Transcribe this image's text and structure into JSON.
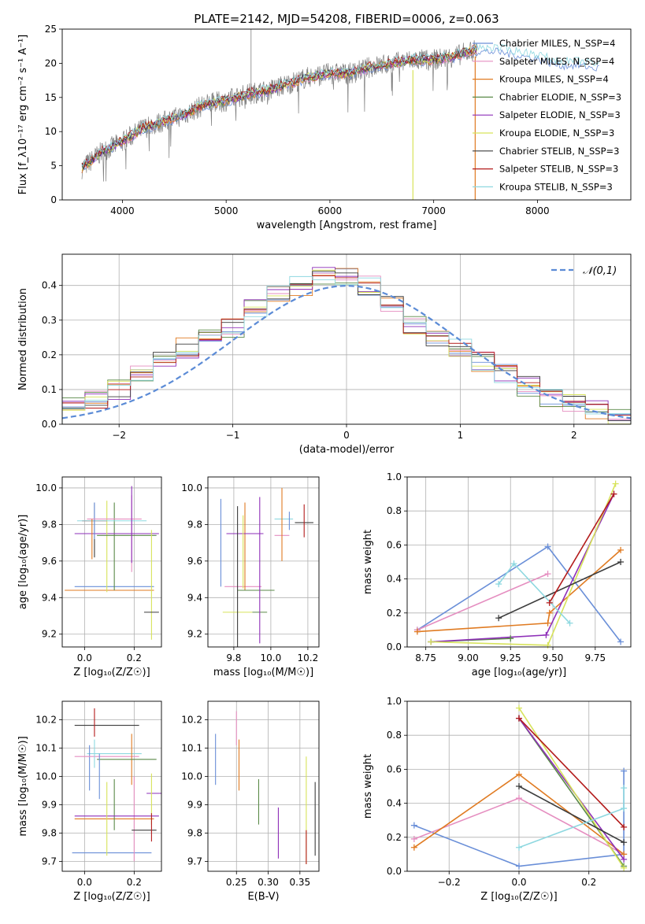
{
  "palette": [
    "#6a8fd8",
    "#e58ec0",
    "#e07b22",
    "#5a8a48",
    "#8e2fb8",
    "#d7e35a",
    "#3c3c3c",
    "#b31b1b",
    "#8ed8e0"
  ],
  "chart_data": [
    {
      "id": "spectrum",
      "type": "line",
      "title": "PLATE=2142, MJD=54208, FIBERID=0006, z=0.063",
      "xlabel": "wavelength [Angstrom, rest frame]",
      "ylabel": "Flux [f_λ10⁻¹⁷ erg cm⁻² s⁻¹ A⁻¹]",
      "xlim": [
        3420,
        8900
      ],
      "ylim": [
        0,
        25
      ],
      "xticks": [
        4000,
        5000,
        6000,
        7000,
        8000
      ],
      "yticks": [
        0,
        5,
        10,
        15,
        20,
        25
      ],
      "legend_position": "top-right",
      "legend": [
        "Chabrier MILES, N_SSP=4",
        "Salpeter MILES, N_SSP=4",
        "Kroupa MILES, N_SSP=4",
        "Chabrier ELODIE, N_SSP=3",
        "Salpeter ELODIE, N_SSP=3",
        "Kroupa ELODIE, N_SSP=3",
        "Chabrier STELIB, N_SSP=3",
        "Salpeter STELIB, N_SSP=3",
        "Kroupa STELIB, N_SSP=3"
      ],
      "data_trace": {
        "x": [
          3600,
          3800,
          4000,
          4200,
          4400,
          4600,
          4800,
          5000,
          5200,
          5400,
          5600,
          5800,
          6000,
          6200,
          6400,
          6600,
          6800,
          7000,
          7200,
          7400,
          7600,
          7800,
          8000,
          8200,
          8400,
          8600,
          8800
        ],
        "y": [
          4.5,
          7,
          8.5,
          10.5,
          11.5,
          12.5,
          14,
          14.5,
          15.5,
          16,
          17,
          18,
          18.5,
          18.5,
          19.5,
          20,
          20.5,
          20.5,
          21,
          22,
          22,
          21.5,
          21,
          20,
          20,
          19.5,
          18.5
        ]
      }
    },
    {
      "id": "residuals",
      "type": "bar",
      "xlabel": "(data-model)/error",
      "ylabel": "Normed distribution",
      "xlim": [
        -2.5,
        2.5
      ],
      "ylim": [
        0,
        0.49
      ],
      "xticks": [
        -2,
        -1,
        0,
        1,
        2
      ],
      "yticks": [
        0.0,
        0.1,
        0.2,
        0.3,
        0.4
      ],
      "legend": [
        "𝒩(0,1)"
      ],
      "legend_position": "top-right",
      "grid": true,
      "bin_centers": [
        -2.4,
        -2.2,
        -2.0,
        -1.8,
        -1.6,
        -1.4,
        -1.2,
        -1.0,
        -0.8,
        -0.6,
        -0.4,
        -0.2,
        0.0,
        0.2,
        0.4,
        0.6,
        0.8,
        1.0,
        1.2,
        1.4,
        1.6,
        1.8,
        2.0,
        2.2,
        2.4
      ],
      "histogram": [
        0.05,
        0.07,
        0.1,
        0.15,
        0.18,
        0.22,
        0.26,
        0.28,
        0.33,
        0.38,
        0.4,
        0.43,
        0.42,
        0.4,
        0.34,
        0.29,
        0.25,
        0.22,
        0.18,
        0.15,
        0.11,
        0.08,
        0.06,
        0.04,
        0.02
      ]
    },
    {
      "id": "age_vs_Z",
      "type": "scatter",
      "xlabel": "Z [log₁₀(Z/Z☉)]",
      "ylabel": "age  [log₁₀(age/yr)]",
      "xlim": [
        -0.09,
        0.31
      ],
      "ylim": [
        9.13,
        10.06
      ],
      "xticks": [
        0.0,
        0.2
      ],
      "yticks": [
        9.2,
        9.4,
        9.6,
        9.8,
        10.0
      ],
      "grid": true,
      "points": [
        {
          "x": 0.12,
          "y": 9.46,
          "xerr": 0.16,
          "yerr": 0.0
        },
        {
          "x": 0.19,
          "y": 9.75,
          "xerr": 0.0,
          "yerr": 0.21
        },
        {
          "x": 0.1,
          "y": 9.44,
          "xerr": 0.18,
          "yerr": 0.0
        },
        {
          "x": 0.12,
          "y": 9.68,
          "xerr": 0.0,
          "yerr": 0.24
        },
        {
          "x": 0.13,
          "y": 9.75,
          "xerr": 0.17,
          "yerr": 0.0
        },
        {
          "x": 0.09,
          "y": 9.68,
          "xerr": 0.0,
          "yerr": 0.25
        },
        {
          "x": 0.04,
          "y": 9.77,
          "xerr": 0.0,
          "yerr": 0.15
        },
        {
          "x": 0.04,
          "y": 9.82,
          "xerr": 0.05,
          "yerr": 0.0
        },
        {
          "x": 0.11,
          "y": 9.82,
          "xerr": 0.14,
          "yerr": 0.0
        },
        {
          "x": 0.04,
          "y": 9.82,
          "xerr": 0.0,
          "yerr": 0.1
        },
        {
          "x": 0.12,
          "y": 9.83,
          "xerr": 0.11,
          "yerr": 0.0
        },
        {
          "x": 0.03,
          "y": 9.72,
          "xerr": 0.0,
          "yerr": 0.11
        },
        {
          "x": 0.17,
          "y": 9.74,
          "xerr": 0.12,
          "yerr": 0.0
        },
        {
          "x": 0.19,
          "y": 9.8,
          "xerr": 0.0,
          "yerr": 0.21
        },
        {
          "x": 0.27,
          "y": 9.47,
          "xerr": 0.0,
          "yerr": 0.3
        },
        {
          "x": 0.27,
          "y": 9.32,
          "xerr": 0.03,
          "yerr": 0.0
        }
      ]
    },
    {
      "id": "age_vs_mass",
      "type": "scatter",
      "xlabel": "mass [log₁₀(M/M☉)]",
      "ylabel": "",
      "xlim": [
        9.66,
        10.26
      ],
      "ylim": [
        9.13,
        10.06
      ],
      "xticks": [
        9.8,
        10.0,
        10.2
      ],
      "yticks": [
        9.2,
        9.4,
        9.6,
        9.8,
        10.0
      ],
      "grid": true,
      "points": [
        {
          "x": 9.73,
          "y": 9.7,
          "xerr": 0.0,
          "yerr": 0.24
        },
        {
          "x": 9.85,
          "y": 9.46,
          "xerr": 0.1,
          "yerr": 0.0
        },
        {
          "x": 9.86,
          "y": 9.68,
          "xerr": 0.0,
          "yerr": 0.24
        },
        {
          "x": 9.92,
          "y": 9.44,
          "xerr": 0.1,
          "yerr": 0.0
        },
        {
          "x": 9.86,
          "y": 9.75,
          "xerr": 0.1,
          "yerr": 0.0
        },
        {
          "x": 9.85,
          "y": 9.65,
          "xerr": 0.0,
          "yerr": 0.2
        },
        {
          "x": 10.18,
          "y": 9.81,
          "xerr": 0.05,
          "yerr": 0.0
        },
        {
          "x": 10.18,
          "y": 9.82,
          "xerr": 0.0,
          "yerr": 0.09
        },
        {
          "x": 10.07,
          "y": 9.83,
          "xerr": 0.05,
          "yerr": 0.0
        },
        {
          "x": 10.1,
          "y": 9.82,
          "xerr": 0.0,
          "yerr": 0.05
        },
        {
          "x": 10.06,
          "y": 9.74,
          "xerr": 0.04,
          "yerr": 0.0
        },
        {
          "x": 10.06,
          "y": 9.8,
          "xerr": 0.0,
          "yerr": 0.2
        },
        {
          "x": 9.94,
          "y": 9.32,
          "xerr": 0.04,
          "yerr": 0.0
        },
        {
          "x": 9.94,
          "y": 9.55,
          "xerr": 0.0,
          "yerr": 0.4
        },
        {
          "x": 9.82,
          "y": 9.32,
          "xerr": 0.08,
          "yerr": 0.0
        },
        {
          "x": 9.82,
          "y": 9.5,
          "xerr": 0.0,
          "yerr": 0.4
        }
      ]
    },
    {
      "id": "weight_vs_age",
      "type": "line",
      "xlabel": "age  [log₁₀(age/yr)]",
      "ylabel": "mass weight",
      "xlim": [
        8.64,
        9.96
      ],
      "ylim": [
        0.0,
        1.0
      ],
      "xticks": [
        8.75,
        9.0,
        9.25,
        9.5,
        9.75
      ],
      "yticks": [
        0.0,
        0.2,
        0.4,
        0.6,
        0.8,
        1.0
      ],
      "grid": true,
      "series": [
        {
          "x": [
            8.7,
            9.47,
            9.9
          ],
          "y": [
            0.1,
            0.59,
            0.03
          ]
        },
        {
          "x": [
            8.7,
            9.47
          ],
          "y": [
            0.1,
            0.43
          ]
        },
        {
          "x": [
            8.7,
            9.47,
            9.48,
            9.9
          ],
          "y": [
            0.09,
            0.14,
            0.2,
            0.57
          ]
        },
        {
          "x": [
            8.78,
            9.25
          ],
          "y": [
            0.03,
            0.05
          ]
        },
        {
          "x": [
            8.78,
            9.46,
            9.86
          ],
          "y": [
            0.03,
            0.07,
            0.9
          ]
        },
        {
          "x": [
            8.78,
            9.47,
            9.87
          ],
          "y": [
            0.03,
            0.01,
            0.96
          ]
        },
        {
          "x": [
            9.18,
            9.9
          ],
          "y": [
            0.17,
            0.5
          ]
        },
        {
          "x": [
            9.48,
            9.86
          ],
          "y": [
            0.26,
            0.9
          ]
        },
        {
          "x": [
            9.18,
            9.27,
            9.6
          ],
          "y": [
            0.37,
            0.49,
            0.14
          ]
        }
      ]
    },
    {
      "id": "mass_vs_Z",
      "type": "scatter",
      "xlabel": "Z [log₁₀(Z/Z☉)]",
      "ylabel": "mass [log₁₀(M/M☉)]",
      "xlim": [
        -0.09,
        0.31
      ],
      "ylim": [
        9.665,
        10.265
      ],
      "xticks": [
        0.0,
        0.2
      ],
      "yticks": [
        9.7,
        9.8,
        9.9,
        10.0,
        10.1,
        10.2
      ],
      "grid": true,
      "points": [
        {
          "x": 0.11,
          "y": 9.73,
          "xerr": 0.16,
          "yerr": 0.0
        },
        {
          "x": 0.2,
          "y": 9.85,
          "xerr": 0.0,
          "yerr": 0.15
        },
        {
          "x": 0.12,
          "y": 9.85,
          "xerr": 0.16,
          "yerr": 0.0
        },
        {
          "x": 0.12,
          "y": 9.9,
          "xerr": 0.0,
          "yerr": 0.09
        },
        {
          "x": 0.13,
          "y": 9.86,
          "xerr": 0.17,
          "yerr": 0.0
        },
        {
          "x": 0.09,
          "y": 9.85,
          "xerr": 0.0,
          "yerr": 0.13
        },
        {
          "x": 0.09,
          "y": 10.18,
          "xerr": 0.13,
          "yerr": 0.0
        },
        {
          "x": 0.04,
          "y": 10.19,
          "xerr": 0.0,
          "yerr": 0.05
        },
        {
          "x": 0.12,
          "y": 10.08,
          "xerr": 0.11,
          "yerr": 0.0
        },
        {
          "x": 0.02,
          "y": 10.03,
          "xerr": 0.0,
          "yerr": 0.08
        },
        {
          "x": 0.09,
          "y": 10.07,
          "xerr": 0.13,
          "yerr": 0.0
        },
        {
          "x": 0.19,
          "y": 10.06,
          "xerr": 0.0,
          "yerr": 0.09
        },
        {
          "x": 0.17,
          "y": 10.06,
          "xerr": 0.12,
          "yerr": 0.0
        },
        {
          "x": 0.28,
          "y": 9.94,
          "xerr": 0.03,
          "yerr": 0.0
        },
        {
          "x": 0.27,
          "y": 9.92,
          "xerr": 0.0,
          "yerr": 0.09
        },
        {
          "x": 0.24,
          "y": 9.81,
          "xerr": 0.05,
          "yerr": 0.0
        },
        {
          "x": 0.27,
          "y": 9.82,
          "xerr": 0.0,
          "yerr": 0.05
        },
        {
          "x": 0.04,
          "y": 10.08,
          "xerr": 0.0,
          "yerr": 0.05
        },
        {
          "x": 0.06,
          "y": 10.0,
          "xerr": 0.0,
          "yerr": 0.08
        }
      ]
    },
    {
      "id": "mass_vs_ebv",
      "type": "scatter",
      "xlabel": "E(B-V)",
      "ylabel": "",
      "xlim": [
        0.205,
        0.38
      ],
      "ylim": [
        9.665,
        10.265
      ],
      "xticks": [
        0.25,
        0.3,
        0.35
      ],
      "yticks": [
        9.7,
        9.8,
        9.9,
        10.0,
        10.1,
        10.2
      ],
      "grid": true,
      "points": [
        {
          "x": 0.217,
          "y": 10.06,
          "xerr": 0.0,
          "yerr": 0.09
        },
        {
          "x": 0.25,
          "y": 10.17,
          "xerr": 0.0,
          "yerr": 0.06
        },
        {
          "x": 0.254,
          "y": 10.04,
          "xerr": 0.0,
          "yerr": 0.09
        },
        {
          "x": 0.285,
          "y": 9.91,
          "xerr": 0.0,
          "yerr": 0.08
        },
        {
          "x": 0.316,
          "y": 9.8,
          "xerr": 0.0,
          "yerr": 0.09
        },
        {
          "x": 0.36,
          "y": 9.88,
          "xerr": 0.0,
          "yerr": 0.19
        },
        {
          "x": 0.374,
          "y": 9.85,
          "xerr": 0.0,
          "yerr": 0.13
        },
        {
          "x": 0.36,
          "y": 9.75,
          "xerr": 0.0,
          "yerr": 0.06
        }
      ]
    },
    {
      "id": "weight_vs_Z",
      "type": "line",
      "xlabel": "Z [log₁₀(Z/Z☉)]",
      "ylabel": "mass weight",
      "xlim": [
        -0.32,
        0.32
      ],
      "ylim": [
        0.0,
        1.0
      ],
      "xticks": [
        -0.2,
        0.0,
        0.2
      ],
      "yticks": [
        0.0,
        0.2,
        0.4,
        0.6,
        0.8,
        1.0
      ],
      "grid": true,
      "series": [
        {
          "x": [
            -0.3,
            0.0,
            0.3,
            0.3
          ],
          "y": [
            0.27,
            0.03,
            0.1,
            0.59
          ]
        },
        {
          "x": [
            -0.3,
            0.0,
            0.3
          ],
          "y": [
            0.19,
            0.43,
            0.1
          ]
        },
        {
          "x": [
            -0.3,
            0.0,
            0.3
          ],
          "y": [
            0.14,
            0.57,
            0.1
          ]
        },
        {
          "x": [
            0.0,
            0.3
          ],
          "y": [
            0.9,
            0.03
          ]
        },
        {
          "x": [
            0.0,
            0.3
          ],
          "y": [
            0.9,
            0.07
          ]
        },
        {
          "x": [
            0.0,
            0.3
          ],
          "y": [
            0.96,
            0.02
          ]
        },
        {
          "x": [
            0.0,
            0.3
          ],
          "y": [
            0.5,
            0.17
          ]
        },
        {
          "x": [
            0.0,
            0.3
          ],
          "y": [
            0.9,
            0.26
          ]
        },
        {
          "x": [
            0.0,
            0.3,
            0.3
          ],
          "y": [
            0.14,
            0.37,
            0.49
          ]
        }
      ]
    }
  ]
}
